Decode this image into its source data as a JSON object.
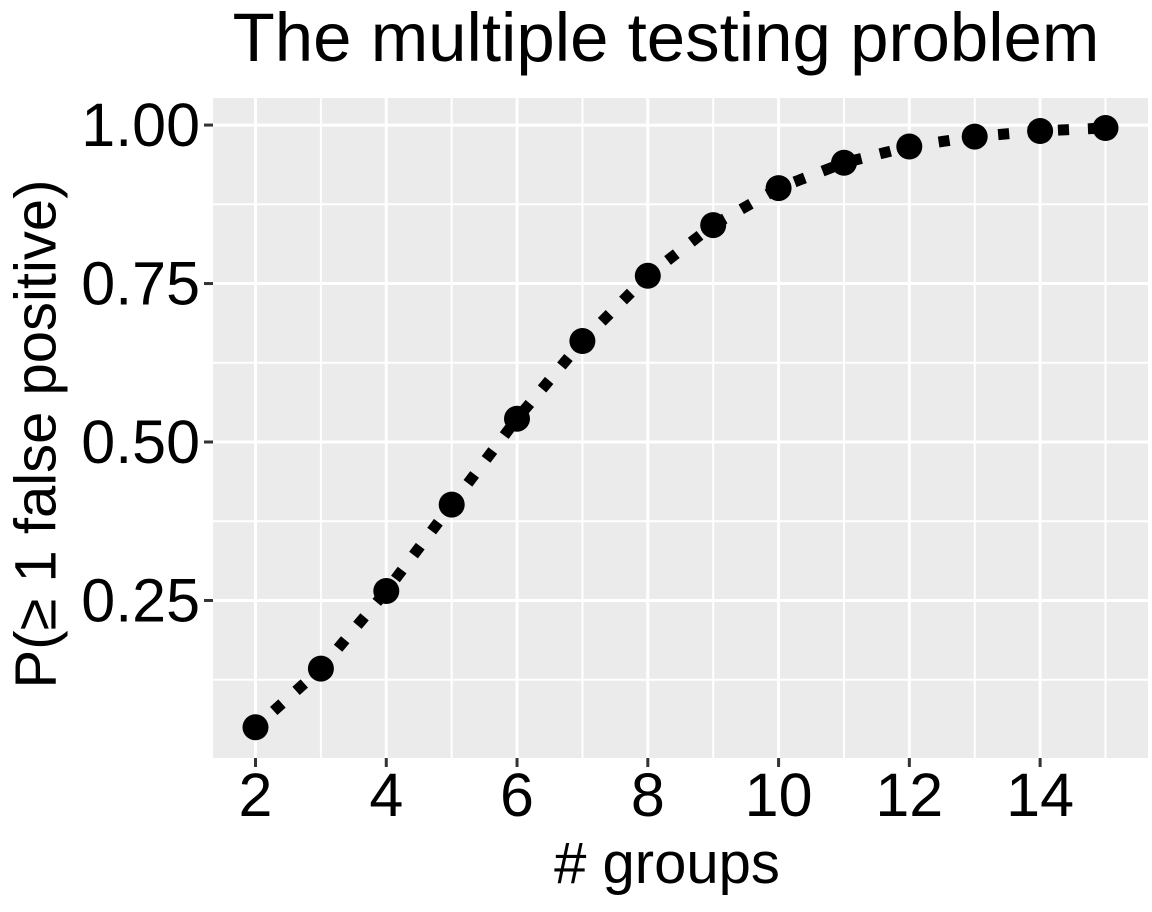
{
  "title": "The multiple testing problem",
  "chart_data": {
    "type": "line",
    "title": "The multiple testing problem",
    "xlabel": "# groups",
    "ylabel": "P(≥ 1 false positive)",
    "x": [
      2,
      3,
      4,
      5,
      6,
      7,
      8,
      9,
      10,
      11,
      12,
      13,
      14,
      15
    ],
    "y": [
      0.05,
      0.1426,
      0.2649,
      0.4013,
      0.5367,
      0.6594,
      0.7622,
      0.8422,
      0.9006,
      0.9405,
      0.9662,
      0.9818,
      0.9906,
      0.9954
    ],
    "xlim": [
      1.35,
      15.65
    ],
    "ylim": [
      0.0015,
      1.0427
    ],
    "x_ticks": [
      2,
      4,
      6,
      8,
      10,
      12,
      14
    ],
    "x_tick_labels": [
      "2",
      "4",
      "6",
      "8",
      "10",
      "12",
      "14"
    ],
    "y_ticks": [
      0.25,
      0.5,
      0.75,
      1.0
    ],
    "y_tick_labels": [
      "0.25",
      "0.50",
      "0.75",
      "1.00"
    ],
    "x_minor_gridlines": [
      3,
      5,
      7,
      9,
      11,
      13,
      15
    ],
    "y_minor_gridlines": [
      0.125,
      0.375,
      0.625,
      0.875
    ],
    "grid": "major-and-minor",
    "legend": "none",
    "line_style": "dotted",
    "marker": "filled-circle",
    "colors": {
      "panel_background": "#EBEBEB",
      "gridline": "#FFFFFF",
      "line": "#000000",
      "marker": "#000000",
      "tick_mark": "#333333",
      "text": "#000000",
      "figure_background": "#FFFFFF"
    }
  }
}
